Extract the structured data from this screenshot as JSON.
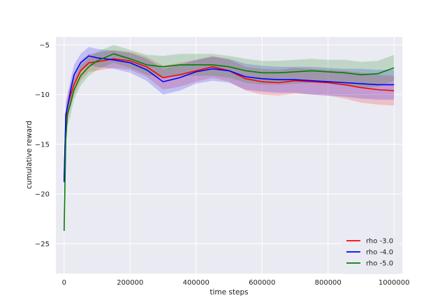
{
  "chart_data": {
    "type": "line",
    "title": "",
    "xlabel": "time steps",
    "ylabel": "cumulative reward",
    "xlim": [
      -25000,
      1025000
    ],
    "ylim": [
      -28,
      -4.2
    ],
    "xticks": [
      0,
      200000,
      400000,
      600000,
      800000,
      1000000
    ],
    "xtick_labels": [
      "0",
      "200000",
      "400000",
      "600000",
      "800000",
      "1000000"
    ],
    "yticks": [
      -25,
      -20,
      -15,
      -10,
      -5
    ],
    "ytick_labels": [
      "−25",
      "−20",
      "−15",
      "−10",
      "−5"
    ],
    "grid": true,
    "legend_position": "lower right",
    "background": "#eaeaf2",
    "series": [
      {
        "name": "rho -3.0",
        "color": "#ff0000",
        "x": [
          0,
          5000,
          10000,
          20000,
          30000,
          50000,
          75000,
          100000,
          150000,
          200000,
          250000,
          300000,
          350000,
          400000,
          450000,
          500000,
          550000,
          600000,
          650000,
          700000,
          750000,
          800000,
          850000,
          900000,
          950000,
          1000000
        ],
        "y": [
          -18.5,
          -12.5,
          -11.2,
          -10.0,
          -9.0,
          -7.6,
          -6.8,
          -6.7,
          -6.4,
          -6.6,
          -7.2,
          -8.3,
          -8.0,
          -7.6,
          -7.2,
          -7.6,
          -8.4,
          -8.7,
          -8.8,
          -8.6,
          -8.7,
          -8.8,
          -9.0,
          -9.3,
          -9.5,
          -9.6
        ],
        "band": [
          1.4,
          1.2,
          1.2,
          1.2,
          1.0,
          1.0,
          0.9,
          0.9,
          0.9,
          0.9,
          1.0,
          1.2,
          1.2,
          1.1,
          1.1,
          1.1,
          1.2,
          1.3,
          1.3,
          1.3,
          1.3,
          1.3,
          1.4,
          1.5,
          1.5,
          1.5
        ]
      },
      {
        "name": "rho -4.0",
        "color": "#0000ff",
        "x": [
          0,
          5000,
          10000,
          20000,
          30000,
          50000,
          75000,
          100000,
          150000,
          200000,
          250000,
          300000,
          350000,
          400000,
          450000,
          500000,
          550000,
          600000,
          650000,
          700000,
          750000,
          800000,
          850000,
          900000,
          950000,
          1000000
        ],
        "y": [
          -18.8,
          -12.0,
          -11.3,
          -9.5,
          -8.0,
          -6.8,
          -6.1,
          -6.3,
          -6.5,
          -6.8,
          -7.5,
          -8.7,
          -8.3,
          -7.7,
          -7.4,
          -7.6,
          -8.2,
          -8.4,
          -8.5,
          -8.5,
          -8.6,
          -8.7,
          -8.8,
          -8.9,
          -9.0,
          -9.0
        ],
        "band": [
          1.4,
          1.2,
          1.2,
          1.1,
          1.0,
          0.9,
          0.9,
          0.9,
          0.9,
          1.0,
          1.1,
          1.3,
          1.3,
          1.2,
          1.2,
          1.2,
          1.3,
          1.3,
          1.3,
          1.3,
          1.4,
          1.4,
          1.4,
          1.5,
          1.5,
          1.5
        ]
      },
      {
        "name": "rho -5.0",
        "color": "#008000",
        "x": [
          0,
          5000,
          10000,
          20000,
          30000,
          50000,
          75000,
          100000,
          150000,
          200000,
          250000,
          300000,
          350000,
          400000,
          450000,
          500000,
          550000,
          600000,
          650000,
          700000,
          750000,
          800000,
          850000,
          900000,
          950000,
          1000000
        ],
        "y": [
          -23.7,
          -14.5,
          -12.0,
          -10.8,
          -9.5,
          -8.1,
          -7.2,
          -6.6,
          -5.9,
          -6.4,
          -7.0,
          -7.2,
          -7.0,
          -7.0,
          -7.0,
          -7.2,
          -7.6,
          -7.8,
          -7.8,
          -7.7,
          -7.6,
          -7.7,
          -7.8,
          -8.0,
          -7.9,
          -7.3
        ],
        "band": [
          1.6,
          1.3,
          1.2,
          1.2,
          1.0,
          1.0,
          0.9,
          0.9,
          0.9,
          0.9,
          1.0,
          1.1,
          1.1,
          1.1,
          1.1,
          1.1,
          1.2,
          1.2,
          1.2,
          1.2,
          1.2,
          1.2,
          1.3,
          1.3,
          1.3,
          1.3
        ]
      }
    ]
  }
}
